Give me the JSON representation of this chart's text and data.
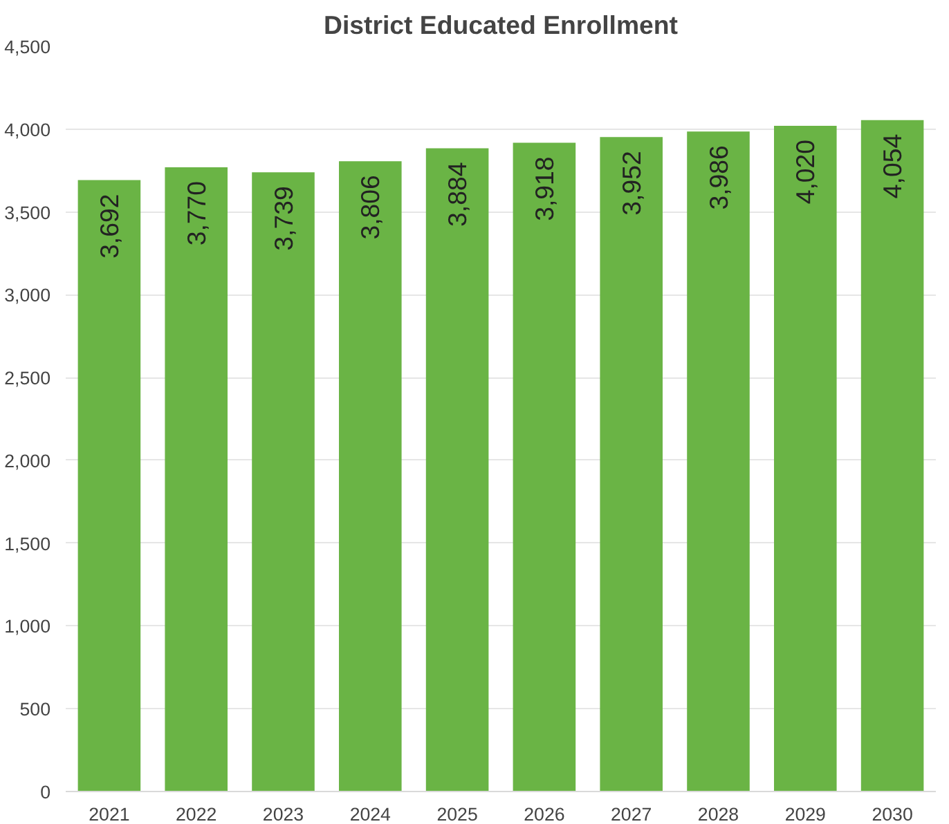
{
  "chart_data": {
    "type": "bar",
    "title": "District Educated Enrollment",
    "categories": [
      "2021",
      "2022",
      "2023",
      "2024",
      "2025",
      "2026",
      "2027",
      "2028",
      "2029",
      "2030"
    ],
    "values": [
      3692,
      3770,
      3739,
      3806,
      3884,
      3918,
      3952,
      3986,
      4020,
      4054
    ],
    "value_labels": [
      "3,692",
      "3,770",
      "3,739",
      "3,806",
      "3,884",
      "3,918",
      "3,952",
      "3,986",
      "4,020",
      "4,054"
    ],
    "color": "#6ab445",
    "ylim": [
      0,
      4500
    ],
    "yticks": [
      0,
      {
        "value": 500,
        "label": "500"
      },
      {
        "value": 1000,
        "label": "1,000"
      },
      {
        "value": 1500,
        "label": "1,500"
      },
      {
        "value": 2000,
        "label": "2,000"
      },
      {
        "value": 2500,
        "label": "2,500"
      },
      {
        "value": 3000,
        "label": "3,000"
      },
      {
        "value": 3500,
        "label": "3,500"
      },
      {
        "value": 4000,
        "label": "4,000"
      },
      {
        "value": 4500,
        "label": "4,500"
      }
    ],
    "grid": "y"
  }
}
